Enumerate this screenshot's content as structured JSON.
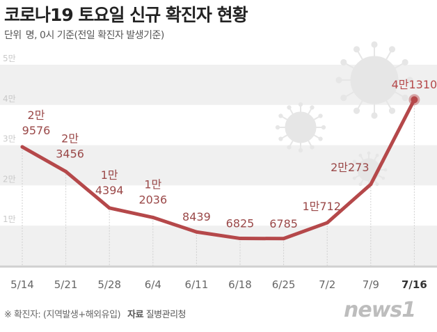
{
  "header": {
    "title": "코로나19 토요일 신규 확진자 현황",
    "unit_label": "단위",
    "unit_text": "명, 0시 기준(전일 확진자 발생기준)"
  },
  "footer": {
    "note": "※ 확진자: (지역발생+해외유입)",
    "source_label": "자료",
    "source": "질병관리청",
    "logo": "news1"
  },
  "colors": {
    "line": "#b5484a",
    "label": "#9a4848",
    "band": "#f0f0f0",
    "virus": "#e6e6e6"
  },
  "icons": [
    "virus-icon",
    "virus-icon",
    "virus-icon"
  ],
  "chart_data": {
    "type": "line",
    "categories": [
      "5/14",
      "5/21",
      "5/28",
      "6/4",
      "6/11",
      "6/18",
      "6/25",
      "7/2",
      "7/9",
      "7/16"
    ],
    "values": [
      29576,
      23456,
      14394,
      12036,
      8439,
      6825,
      6785,
      10712,
      20273,
      41310
    ],
    "data_labels": [
      [
        "2만",
        "9576"
      ],
      [
        "2만",
        "3456"
      ],
      [
        "1만",
        "4394"
      ],
      [
        "1만",
        "2036"
      ],
      [
        "8439"
      ],
      [
        "6825"
      ],
      [
        "6785"
      ],
      [
        "1만712"
      ],
      [
        "2만273"
      ],
      [
        "4만1310"
      ]
    ],
    "yticks": [
      {
        "value": 10000,
        "label": "1만"
      },
      {
        "value": 20000,
        "label": "2만"
      },
      {
        "value": 30000,
        "label": "3만"
      },
      {
        "value": 40000,
        "label": "4만"
      },
      {
        "value": 50000,
        "label": "5만"
      }
    ],
    "ylim": [
      0,
      50000
    ],
    "highlight": "7/16",
    "grid": "alternating bands"
  }
}
